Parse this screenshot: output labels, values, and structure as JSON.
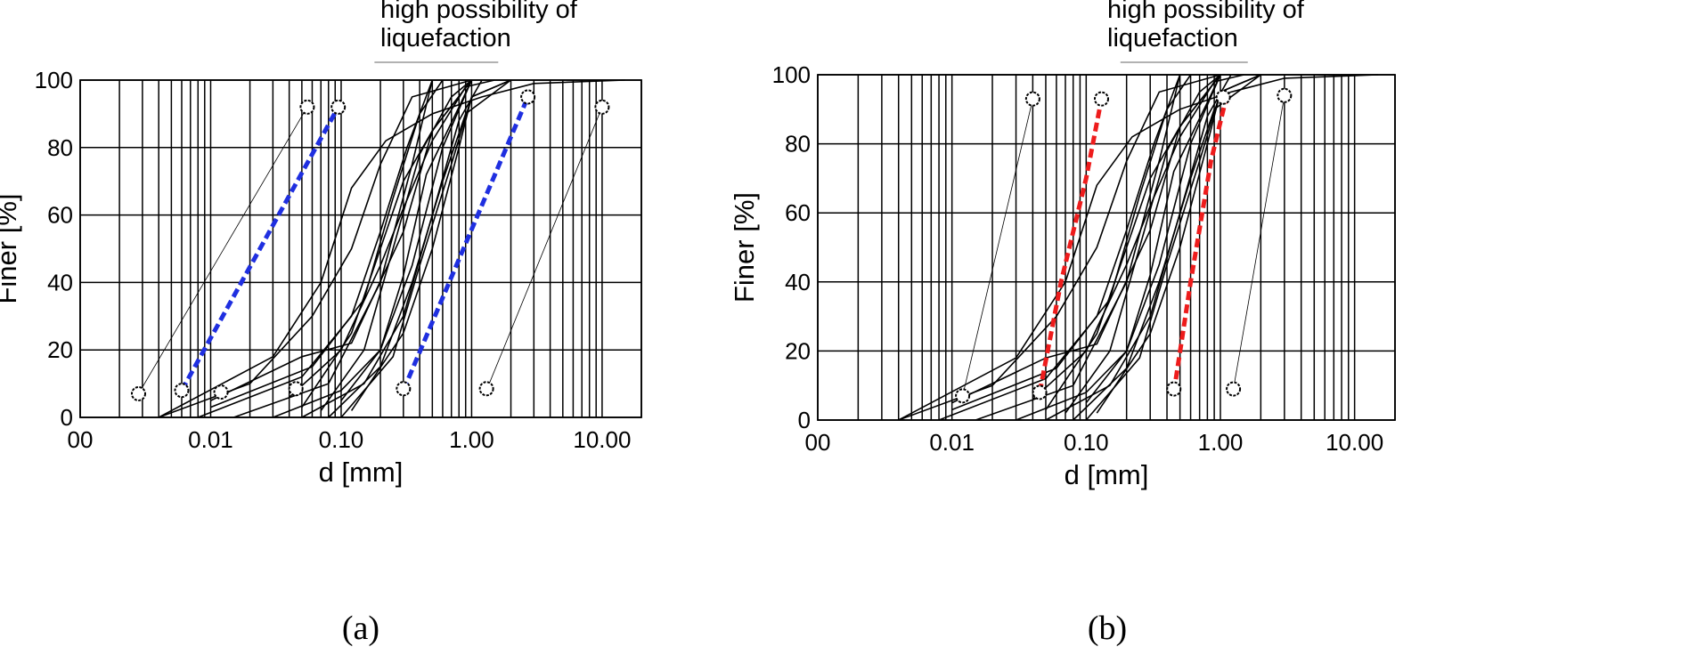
{
  "chart_data": [
    {
      "type": "line",
      "panel_label": "(a)",
      "xlabel": "d [mm]",
      "ylabel": "Finer [%]",
      "xscale": "log",
      "xlim": [
        0.001,
        20
      ],
      "ylim": [
        0,
        100
      ],
      "x_ticks": [
        {
          "value": 0.001,
          "label": "00"
        },
        {
          "value": 0.01,
          "label": "0.01"
        },
        {
          "value": 0.1,
          "label": "0.10"
        },
        {
          "value": 1,
          "label": "1.00"
        },
        {
          "value": 10,
          "label": "10.00"
        }
      ],
      "y_ticks": [
        0,
        20,
        40,
        60,
        80,
        100
      ],
      "grid": true,
      "annotation": {
        "text_lines": [
          "high possibility of",
          "liquefaction"
        ],
        "range": [
          0.18,
          1.6
        ]
      },
      "boundary_curves": [
        {
          "name": "",
          "color": "#1f2fe0",
          "style": "dashed",
          "points": [
            [
              0.006,
              8
            ],
            [
              0.095,
              92
            ]
          ]
        },
        {
          "name": "",
          "color": "#1f2fe0",
          "style": "dashed",
          "points": [
            [
              0.3,
              8
            ],
            [
              2.7,
              95
            ]
          ]
        }
      ],
      "outer_limits": [
        {
          "points": [
            [
              0.0028,
              7
            ],
            [
              0.055,
              92
            ]
          ]
        },
        {
          "points": [
            [
              1.3,
              8
            ],
            [
              10,
              92
            ]
          ]
        }
      ],
      "markers": [
        [
          0.0028,
          7
        ],
        [
          0.006,
          8
        ],
        [
          0.012,
          7.5
        ],
        [
          0.045,
          8.5
        ],
        [
          0.3,
          8.5
        ],
        [
          1.3,
          8.5
        ],
        [
          0.055,
          92
        ],
        [
          0.095,
          92
        ],
        [
          2.7,
          95
        ],
        [
          10,
          92
        ]
      ],
      "series": [
        {
          "points": [
            [
              0.004,
              0
            ],
            [
              0.03,
              18
            ],
            [
              0.07,
              40
            ],
            [
              0.12,
              68
            ],
            [
              0.22,
              82
            ],
            [
              0.5,
              90
            ],
            [
              1.2,
              95
            ],
            [
              3,
              99
            ],
            [
              15,
              100
            ]
          ]
        },
        {
          "points": [
            [
              0.004,
              0
            ],
            [
              0.02,
              10
            ],
            [
              0.06,
              30
            ],
            [
              0.12,
              50
            ],
            [
              0.2,
              75
            ],
            [
              0.35,
              95
            ],
            [
              1,
              100
            ]
          ]
        },
        {
          "points": [
            [
              0.008,
              0
            ],
            [
              0.05,
              12
            ],
            [
              0.12,
              30
            ],
            [
              0.2,
              55
            ],
            [
              0.32,
              80
            ],
            [
              0.5,
              100
            ]
          ]
        },
        {
          "points": [
            [
              0.01,
              3
            ],
            [
              0.06,
              15
            ],
            [
              0.15,
              35
            ],
            [
              0.25,
              65
            ],
            [
              0.4,
              90
            ],
            [
              0.6,
              100
            ]
          ]
        },
        {
          "points": [
            [
              0.015,
              0
            ],
            [
              0.08,
              10
            ],
            [
              0.2,
              40
            ],
            [
              0.35,
              75
            ],
            [
              0.5,
              100
            ]
          ]
        },
        {
          "points": [
            [
              0.01,
              5
            ],
            [
              0.05,
              18
            ],
            [
              0.12,
              22
            ],
            [
              0.3,
              55
            ],
            [
              0.5,
              85
            ],
            [
              1,
              100
            ]
          ]
        },
        {
          "points": [
            [
              0.03,
              0
            ],
            [
              0.1,
              8
            ],
            [
              0.2,
              20
            ],
            [
              0.35,
              45
            ],
            [
              0.6,
              80
            ],
            [
              1,
              100
            ]
          ]
        },
        {
          "points": [
            [
              0.05,
              0
            ],
            [
              0.15,
              10
            ],
            [
              0.3,
              30
            ],
            [
              0.5,
              60
            ],
            [
              0.8,
              88
            ],
            [
              1.2,
              100
            ]
          ]
        },
        {
          "points": [
            [
              0.08,
              0
            ],
            [
              0.2,
              15
            ],
            [
              0.35,
              40
            ],
            [
              0.6,
              70
            ],
            [
              0.9,
              90
            ],
            [
              2,
              100
            ]
          ]
        },
        {
          "points": [
            [
              0.1,
              0
            ],
            [
              0.25,
              18
            ],
            [
              0.4,
              45
            ],
            [
              0.7,
              75
            ],
            [
              1,
              95
            ],
            [
              2,
              100
            ]
          ]
        },
        {
          "points": [
            [
              0.07,
              2
            ],
            [
              0.15,
              20
            ],
            [
              0.25,
              50
            ],
            [
              0.4,
              78
            ],
            [
              0.7,
              95
            ],
            [
              1,
              100
            ]
          ]
        },
        {
          "points": [
            [
              0.05,
              3
            ],
            [
              0.12,
              25
            ],
            [
              0.2,
              50
            ],
            [
              0.3,
              70
            ],
            [
              0.5,
              85
            ],
            [
              1,
              100
            ]
          ]
        },
        {
          "points": [
            [
              0.1,
              5
            ],
            [
              0.2,
              20
            ],
            [
              0.3,
              42
            ],
            [
              0.45,
              72
            ],
            [
              0.8,
              92
            ],
            [
              1,
              100
            ]
          ]
        },
        {
          "points": [
            [
              0.04,
              6
            ],
            [
              0.1,
              20
            ],
            [
              0.2,
              45
            ],
            [
              0.3,
              62
            ],
            [
              0.5,
              82
            ],
            [
              0.9,
              98
            ],
            [
              1.5,
              100
            ]
          ]
        },
        {
          "points": [
            [
              0.12,
              2
            ],
            [
              0.3,
              25
            ],
            [
              0.5,
              50
            ],
            [
              0.8,
              80
            ],
            [
              1,
              95
            ],
            [
              2,
              100
            ]
          ]
        }
      ]
    },
    {
      "type": "line",
      "panel_label": "(b)",
      "xlabel": "d [mm]",
      "ylabel": "Finer [%]",
      "xscale": "log",
      "xlim": [
        0.001,
        20
      ],
      "ylim": [
        0,
        100
      ],
      "x_ticks": [
        {
          "value": 0.001,
          "label": "00"
        },
        {
          "value": 0.01,
          "label": "0.01"
        },
        {
          "value": 0.1,
          "label": "0.10"
        },
        {
          "value": 1,
          "label": "1.00"
        },
        {
          "value": 10,
          "label": "10.00"
        }
      ],
      "y_ticks": [
        0,
        20,
        40,
        60,
        80,
        100
      ],
      "grid": true,
      "annotation": {
        "text_lines": [
          "high possibility of",
          "liquefaction"
        ],
        "range": [
          0.18,
          1.6
        ]
      },
      "boundary_curves": [
        {
          "name": "",
          "color": "#ee1c1c",
          "style": "dashed",
          "points": [
            [
              0.045,
              8
            ],
            [
              0.065,
              40
            ],
            [
              0.1,
              70
            ],
            [
              0.13,
              93
            ]
          ]
        },
        {
          "name": "",
          "color": "#ee1c1c",
          "style": "dashed",
          "points": [
            [
              0.45,
              8
            ],
            [
              0.6,
              40
            ],
            [
              0.85,
              75
            ],
            [
              1.1,
              93
            ]
          ]
        }
      ],
      "outer_limits": [
        {
          "points": [
            [
              0.012,
              7
            ],
            [
              0.04,
              93
            ]
          ]
        },
        {
          "points": [
            [
              1.25,
              9
            ],
            [
              3,
              94
            ]
          ]
        }
      ],
      "markers": [
        [
          0.012,
          7
        ],
        [
          0.045,
          8
        ],
        [
          0.45,
          9
        ],
        [
          1.25,
          9
        ],
        [
          0.04,
          93
        ],
        [
          0.13,
          93
        ],
        [
          1.05,
          93.5
        ],
        [
          3,
          94
        ]
      ],
      "series": [
        {
          "points": [
            [
              0.004,
              0
            ],
            [
              0.03,
              18
            ],
            [
              0.07,
              40
            ],
            [
              0.12,
              68
            ],
            [
              0.22,
              82
            ],
            [
              0.5,
              90
            ],
            [
              1.2,
              95
            ],
            [
              3,
              99
            ],
            [
              15,
              100
            ]
          ]
        },
        {
          "points": [
            [
              0.004,
              0
            ],
            [
              0.02,
              10
            ],
            [
              0.06,
              30
            ],
            [
              0.12,
              50
            ],
            [
              0.2,
              75
            ],
            [
              0.35,
              95
            ],
            [
              1,
              100
            ]
          ]
        },
        {
          "points": [
            [
              0.008,
              0
            ],
            [
              0.05,
              12
            ],
            [
              0.12,
              30
            ],
            [
              0.2,
              55
            ],
            [
              0.32,
              80
            ],
            [
              0.5,
              100
            ]
          ]
        },
        {
          "points": [
            [
              0.01,
              3
            ],
            [
              0.06,
              15
            ],
            [
              0.15,
              35
            ],
            [
              0.25,
              65
            ],
            [
              0.4,
              90
            ],
            [
              0.6,
              100
            ]
          ]
        },
        {
          "points": [
            [
              0.015,
              0
            ],
            [
              0.08,
              10
            ],
            [
              0.2,
              40
            ],
            [
              0.35,
              75
            ],
            [
              0.5,
              100
            ]
          ]
        },
        {
          "points": [
            [
              0.01,
              5
            ],
            [
              0.05,
              18
            ],
            [
              0.12,
              22
            ],
            [
              0.3,
              55
            ],
            [
              0.5,
              85
            ],
            [
              1,
              100
            ]
          ]
        },
        {
          "points": [
            [
              0.03,
              0
            ],
            [
              0.1,
              8
            ],
            [
              0.2,
              20
            ],
            [
              0.35,
              45
            ],
            [
              0.6,
              80
            ],
            [
              1,
              100
            ]
          ]
        },
        {
          "points": [
            [
              0.05,
              0
            ],
            [
              0.15,
              10
            ],
            [
              0.3,
              30
            ],
            [
              0.5,
              60
            ],
            [
              0.8,
              88
            ],
            [
              1.2,
              100
            ]
          ]
        },
        {
          "points": [
            [
              0.08,
              0
            ],
            [
              0.2,
              15
            ],
            [
              0.35,
              40
            ],
            [
              0.6,
              70
            ],
            [
              0.9,
              90
            ],
            [
              2,
              100
            ]
          ]
        },
        {
          "points": [
            [
              0.1,
              0
            ],
            [
              0.25,
              18
            ],
            [
              0.4,
              45
            ],
            [
              0.7,
              75
            ],
            [
              1,
              95
            ],
            [
              2,
              100
            ]
          ]
        },
        {
          "points": [
            [
              0.07,
              2
            ],
            [
              0.15,
              20
            ],
            [
              0.25,
              50
            ],
            [
              0.4,
              78
            ],
            [
              0.7,
              95
            ],
            [
              1,
              100
            ]
          ]
        },
        {
          "points": [
            [
              0.05,
              3
            ],
            [
              0.12,
              25
            ],
            [
              0.2,
              50
            ],
            [
              0.3,
              70
            ],
            [
              0.5,
              85
            ],
            [
              1,
              100
            ]
          ]
        },
        {
          "points": [
            [
              0.1,
              5
            ],
            [
              0.2,
              20
            ],
            [
              0.3,
              42
            ],
            [
              0.45,
              72
            ],
            [
              0.8,
              92
            ],
            [
              1,
              100
            ]
          ]
        },
        {
          "points": [
            [
              0.04,
              6
            ],
            [
              0.1,
              20
            ],
            [
              0.2,
              45
            ],
            [
              0.3,
              62
            ],
            [
              0.5,
              82
            ],
            [
              0.9,
              98
            ],
            [
              1.5,
              100
            ]
          ]
        },
        {
          "points": [
            [
              0.12,
              2
            ],
            [
              0.3,
              25
            ],
            [
              0.5,
              50
            ],
            [
              0.8,
              80
            ],
            [
              1,
              95
            ],
            [
              2,
              100
            ]
          ]
        }
      ]
    }
  ]
}
